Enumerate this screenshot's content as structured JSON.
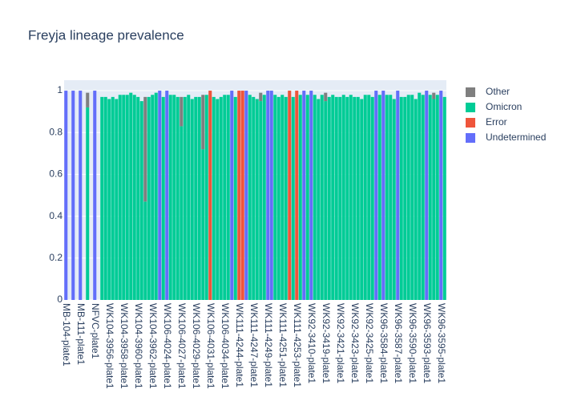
{
  "chart_data": {
    "type": "bar",
    "stacked": true,
    "title": "Freyja lineage prevalence",
    "categories": [
      "MB-104-plate1",
      null,
      null,
      null,
      "MB-111-plate1",
      null,
      null,
      null,
      "NFVC-plate1",
      null,
      null,
      null,
      "WK104-3956-plate1",
      null,
      null,
      null,
      "WK104-3958-plate1",
      null,
      null,
      null,
      "WK104-3960-plate1",
      null,
      null,
      null,
      "WK104-3962-plate1",
      null,
      null,
      null,
      "WK106-4024-plate1",
      null,
      null,
      null,
      "WK106-4027-plate1",
      null,
      null,
      null,
      "WK106-4029-plate1",
      null,
      null,
      null,
      "WK106-4031-plate1",
      null,
      null,
      null,
      "WK106-4034-plate1",
      null,
      null,
      null,
      "WK111-4244-plate1",
      null,
      null,
      null,
      "WK111-4247-plate1",
      null,
      null,
      null,
      "WK111-4249-plate1",
      null,
      null,
      null,
      "WK111-4251-plate1",
      null,
      null,
      null,
      "WK111-4253-plate1",
      null,
      null,
      null,
      "WK92-3410-plate1",
      null,
      null,
      null,
      "WK92-3419-plate1",
      null,
      null,
      null,
      "WK92-3421-plate1",
      null,
      null,
      null,
      "WK92-3423-plate1",
      null,
      null,
      null,
      "WK92-3425-plate1",
      null,
      null,
      null,
      "WK96-3584-plate1",
      null,
      null,
      null,
      "WK96-3587-plate1",
      null,
      null,
      null,
      "WK96-3590-plate1",
      null,
      null,
      null,
      "WK96-3593-plate1",
      null,
      null,
      null,
      "WK96-3595-plate1",
      null
    ],
    "series": [
      {
        "name": "Other",
        "color": "#7f7f7f",
        "values": [
          null,
          null,
          null,
          null,
          null,
          null,
          0.07,
          null,
          null,
          null,
          null,
          null,
          null,
          null,
          null,
          null,
          null,
          null,
          null,
          null,
          null,
          null,
          0.5,
          null,
          null,
          null,
          null,
          null,
          null,
          null,
          null,
          null,
          0.14,
          null,
          null,
          null,
          null,
          null,
          0.26,
          null,
          null,
          null,
          null,
          null,
          null,
          null,
          null,
          null,
          null,
          null,
          null,
          null,
          null,
          null,
          0.04,
          null,
          null,
          null,
          null,
          null,
          null,
          null,
          null,
          null,
          null,
          null,
          null,
          null,
          null,
          null,
          null,
          null,
          0.04,
          null,
          null,
          null,
          null,
          null,
          null,
          null,
          null,
          null,
          null,
          null,
          null,
          null,
          null,
          null,
          null,
          null,
          null,
          null,
          null,
          null,
          null,
          null,
          null,
          null,
          null,
          null,
          null,
          null,
          0.03,
          null,
          null,
          null
        ]
      },
      {
        "name": "Omicron",
        "color": "#00cc96",
        "values": [
          null,
          null,
          null,
          null,
          null,
          null,
          0.92,
          null,
          null,
          null,
          0.97,
          0.97,
          0.96,
          0.97,
          0.96,
          0.98,
          0.98,
          0.98,
          0.99,
          0.98,
          0.97,
          0.95,
          0.47,
          0.97,
          0.98,
          0.99,
          null,
          0.97,
          null,
          0.98,
          0.98,
          0.97,
          0.83,
          0.97,
          0.98,
          0.96,
          0.97,
          0.97,
          0.72,
          0.98,
          null,
          0.97,
          0.96,
          0.97,
          0.98,
          0.98,
          null,
          0.97,
          null,
          null,
          null,
          0.98,
          0.97,
          0.96,
          0.95,
          0.98,
          null,
          null,
          0.98,
          0.97,
          0.98,
          0.97,
          null,
          0.97,
          null,
          0.98,
          null,
          0.98,
          null,
          0.98,
          0.96,
          0.98,
          0.95,
          0.97,
          0.98,
          0.97,
          0.97,
          0.98,
          0.97,
          0.98,
          0.97,
          0.97,
          0.96,
          0.98,
          0.98,
          0.97,
          null,
          0.98,
          null,
          0.98,
          0.98,
          0.96,
          null,
          0.97,
          0.97,
          0.98,
          0.98,
          0.96,
          0.99,
          0.98,
          null,
          0.98,
          0.96,
          0.98,
          null,
          0.97
        ]
      },
      {
        "name": "Error",
        "color": "#ef553b",
        "values": [
          null,
          null,
          null,
          null,
          null,
          null,
          null,
          null,
          null,
          null,
          null,
          null,
          null,
          null,
          null,
          null,
          null,
          null,
          null,
          null,
          null,
          null,
          null,
          null,
          null,
          null,
          null,
          null,
          null,
          null,
          null,
          null,
          null,
          null,
          null,
          null,
          null,
          null,
          null,
          null,
          1,
          null,
          null,
          null,
          null,
          null,
          null,
          null,
          1,
          1,
          null,
          null,
          null,
          null,
          null,
          null,
          null,
          null,
          null,
          null,
          null,
          null,
          1,
          null,
          1,
          null,
          null,
          null,
          null,
          null,
          null,
          null,
          null,
          null,
          null,
          null,
          null,
          null,
          null,
          null,
          null,
          null,
          null,
          null,
          null,
          null,
          null,
          null,
          null,
          null,
          null,
          null,
          null,
          null,
          null,
          null,
          null,
          null,
          null,
          null,
          null,
          null,
          null,
          null,
          null,
          null
        ]
      },
      {
        "name": "Undetermined",
        "color": "#636efa",
        "values": [
          1,
          null,
          1,
          null,
          1,
          null,
          null,
          null,
          1,
          null,
          null,
          null,
          null,
          null,
          null,
          null,
          null,
          null,
          null,
          null,
          null,
          null,
          null,
          null,
          null,
          null,
          1,
          null,
          1,
          null,
          null,
          null,
          null,
          null,
          null,
          null,
          null,
          null,
          null,
          null,
          null,
          null,
          null,
          null,
          null,
          null,
          1,
          null,
          null,
          null,
          1,
          null,
          null,
          null,
          null,
          null,
          1,
          1,
          null,
          null,
          null,
          null,
          null,
          null,
          null,
          null,
          1,
          null,
          1,
          null,
          null,
          null,
          null,
          null,
          null,
          null,
          null,
          null,
          null,
          null,
          null,
          null,
          null,
          null,
          null,
          null,
          1,
          null,
          1,
          null,
          null,
          null,
          1,
          null,
          null,
          null,
          null,
          null,
          null,
          null,
          1,
          null,
          null,
          null,
          1,
          null
        ]
      }
    ],
    "ylim": [
      0,
      1.05
    ],
    "yticks": [
      0,
      0.2,
      0.4,
      0.6,
      0.8,
      1
    ],
    "grid": true
  }
}
